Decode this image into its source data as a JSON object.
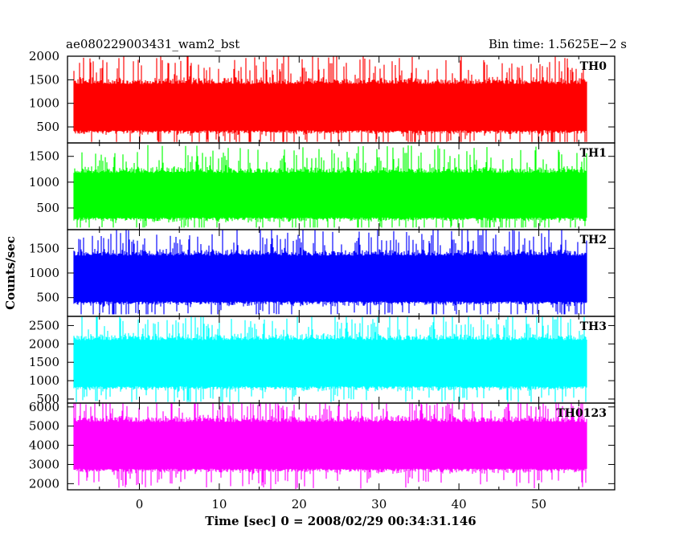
{
  "header": {
    "left": "ae080229003431_wam2_bst",
    "right": "Bin time: 1.5625E−2 s"
  },
  "chart_data": {
    "type": "line",
    "xlabel": "Time [sec] 0 = 2008/02/29 00:34:31.146",
    "ylabel": "Counts/sec",
    "xlim": [
      -9.0,
      59.5
    ],
    "x_ticks": [
      0,
      10,
      20,
      30,
      40,
      50
    ],
    "x_tick_labels": [
      "0",
      "10",
      "20",
      "30",
      "40",
      "50"
    ],
    "x_range_data": [
      -8.2,
      56.0
    ],
    "bin_time_s": 0.015625,
    "panels": [
      {
        "name": "TH0",
        "color": "#ff0000",
        "ylim": [
          160,
          2000
        ],
        "yticks": [
          500,
          1000,
          1500,
          2000
        ],
        "mean": 900,
        "min": 180,
        "max": 2000
      },
      {
        "name": "TH1",
        "color": "#00ff00",
        "ylim": [
          80,
          1760
        ],
        "yticks": [
          500,
          1000,
          1500
        ],
        "mean": 730,
        "min": 120,
        "max": 1720
      },
      {
        "name": "TH2",
        "color": "#0000ff",
        "ylim": [
          120,
          1880
        ],
        "yticks": [
          500,
          1000,
          1500
        ],
        "mean": 870,
        "min": 160,
        "max": 1880
      },
      {
        "name": "TH3",
        "color": "#00ffff",
        "ylim": [
          390,
          2750
        ],
        "yticks": [
          500,
          1000,
          1500,
          2000,
          2500
        ],
        "mean": 1450,
        "min": 420,
        "max": 2750
      },
      {
        "name": "TH0123",
        "color": "#ff00ff",
        "ylim": [
          1680,
          6200
        ],
        "yticks": [
          2000,
          3000,
          4000,
          5000,
          6000
        ],
        "mean": 3950,
        "min": 1700,
        "max": 6200
      }
    ]
  }
}
